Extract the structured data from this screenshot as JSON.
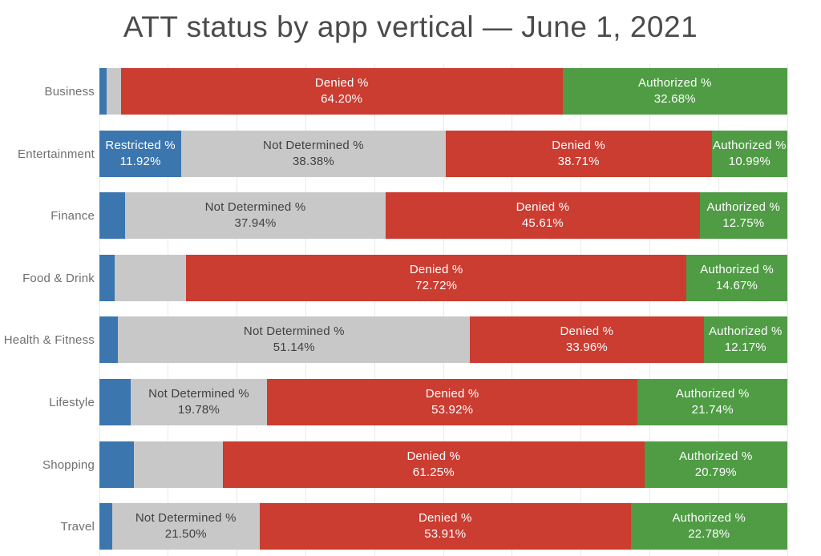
{
  "chart_data": {
    "type": "bar",
    "stacked": true,
    "orientation": "horizontal",
    "title": "ATT status by app vertical — June 1, 2021",
    "xlim": [
      0,
      100
    ],
    "grid": {
      "vertical_gridlines": true,
      "step_pct": 10
    },
    "series_keys": [
      "restricted",
      "not_determined",
      "denied",
      "authorized"
    ],
    "series_names": [
      "Restricted %",
      "Not Determined %",
      "Denied %",
      "Authorized %"
    ],
    "colors": {
      "restricted": "#3b76af",
      "not_determined": "#c8c8c8",
      "denied": "#cb3c31",
      "authorized": "#4f9c44",
      "label_on_bar": "#ffffff",
      "label_on_gray": "#414141",
      "title_text": "#4b4b4b",
      "category_text": "#6f6f6f",
      "gridline": "#e9e9e9"
    },
    "categories": [
      "Business",
      "Entertainment",
      "Finance",
      "Food & Drink",
      "Health & Fitness",
      "Lifestyle",
      "Shopping",
      "Travel"
    ],
    "rows": [
      {
        "category": "Business",
        "segments": [
          {
            "key": "restricted",
            "value": 1.05,
            "estimated": true
          },
          {
            "key": "not_determined",
            "value": 2.07,
            "estimated": true
          },
          {
            "key": "denied",
            "value": 64.2,
            "label_lines": [
              "Denied %",
              "64.20%"
            ]
          },
          {
            "key": "authorized",
            "value": 32.68,
            "label_lines": [
              "Authorized %",
              "32.68%"
            ]
          }
        ]
      },
      {
        "category": "Entertainment",
        "segments": [
          {
            "key": "restricted",
            "value": 11.92,
            "label_lines": [
              "Restricted %",
              "11.92%"
            ]
          },
          {
            "key": "not_determined",
            "value": 38.38,
            "label_lines": [
              "Not Determined %",
              "38.38%"
            ]
          },
          {
            "key": "denied",
            "value": 38.71,
            "label_lines": [
              "Denied %",
              "38.71%"
            ]
          },
          {
            "key": "authorized",
            "value": 10.99,
            "label_lines": [
              "Authorized %",
              "10.99%"
            ]
          }
        ]
      },
      {
        "category": "Finance",
        "segments": [
          {
            "key": "restricted",
            "value": 3.7,
            "estimated": true
          },
          {
            "key": "not_determined",
            "value": 37.94,
            "label_lines": [
              "Not Determined %",
              "37.94%"
            ]
          },
          {
            "key": "denied",
            "value": 45.61,
            "label_lines": [
              "Denied %",
              "45.61%"
            ]
          },
          {
            "key": "authorized",
            "value": 12.75,
            "label_lines": [
              "Authorized %",
              "12.75%"
            ]
          }
        ]
      },
      {
        "category": "Food & Drink",
        "segments": [
          {
            "key": "restricted",
            "value": 2.2,
            "estimated": true
          },
          {
            "key": "not_determined",
            "value": 10.41,
            "estimated": true
          },
          {
            "key": "denied",
            "value": 72.72,
            "label_lines": [
              "Denied %",
              "72.72%"
            ]
          },
          {
            "key": "authorized",
            "value": 14.67,
            "label_lines": [
              "Authorized %",
              "14.67%"
            ]
          }
        ]
      },
      {
        "category": "Health & Fitness",
        "segments": [
          {
            "key": "restricted",
            "value": 2.73,
            "estimated": true
          },
          {
            "key": "not_determined",
            "value": 51.14,
            "label_lines": [
              "Not Determined %",
              "51.14%"
            ]
          },
          {
            "key": "denied",
            "value": 33.96,
            "label_lines": [
              "Denied %",
              "33.96%"
            ]
          },
          {
            "key": "authorized",
            "value": 12.17,
            "label_lines": [
              "Authorized %",
              "12.17%"
            ]
          }
        ]
      },
      {
        "category": "Lifestyle",
        "segments": [
          {
            "key": "restricted",
            "value": 4.56,
            "estimated": true
          },
          {
            "key": "not_determined",
            "value": 19.78,
            "label_lines": [
              "Not Determined %",
              "19.78%"
            ]
          },
          {
            "key": "denied",
            "value": 53.92,
            "label_lines": [
              "Denied %",
              "53.92%"
            ]
          },
          {
            "key": "authorized",
            "value": 21.74,
            "label_lines": [
              "Authorized %",
              "21.74%"
            ]
          }
        ]
      },
      {
        "category": "Shopping",
        "segments": [
          {
            "key": "restricted",
            "value": 5.0,
            "estimated": true
          },
          {
            "key": "not_determined",
            "value": 12.96,
            "estimated": true
          },
          {
            "key": "denied",
            "value": 61.25,
            "label_lines": [
              "Denied %",
              "61.25%"
            ]
          },
          {
            "key": "authorized",
            "value": 20.79,
            "label_lines": [
              "Authorized %",
              "20.79%"
            ]
          }
        ]
      },
      {
        "category": "Travel",
        "segments": [
          {
            "key": "restricted",
            "value": 1.81,
            "estimated": true
          },
          {
            "key": "not_determined",
            "value": 21.5,
            "label_lines": [
              "Not Determined %",
              "21.50%"
            ]
          },
          {
            "key": "denied",
            "value": 53.91,
            "label_lines": [
              "Denied %",
              "53.91%"
            ]
          },
          {
            "key": "authorized",
            "value": 22.78,
            "label_lines": [
              "Authorized %",
              "22.78%"
            ]
          }
        ]
      }
    ]
  }
}
